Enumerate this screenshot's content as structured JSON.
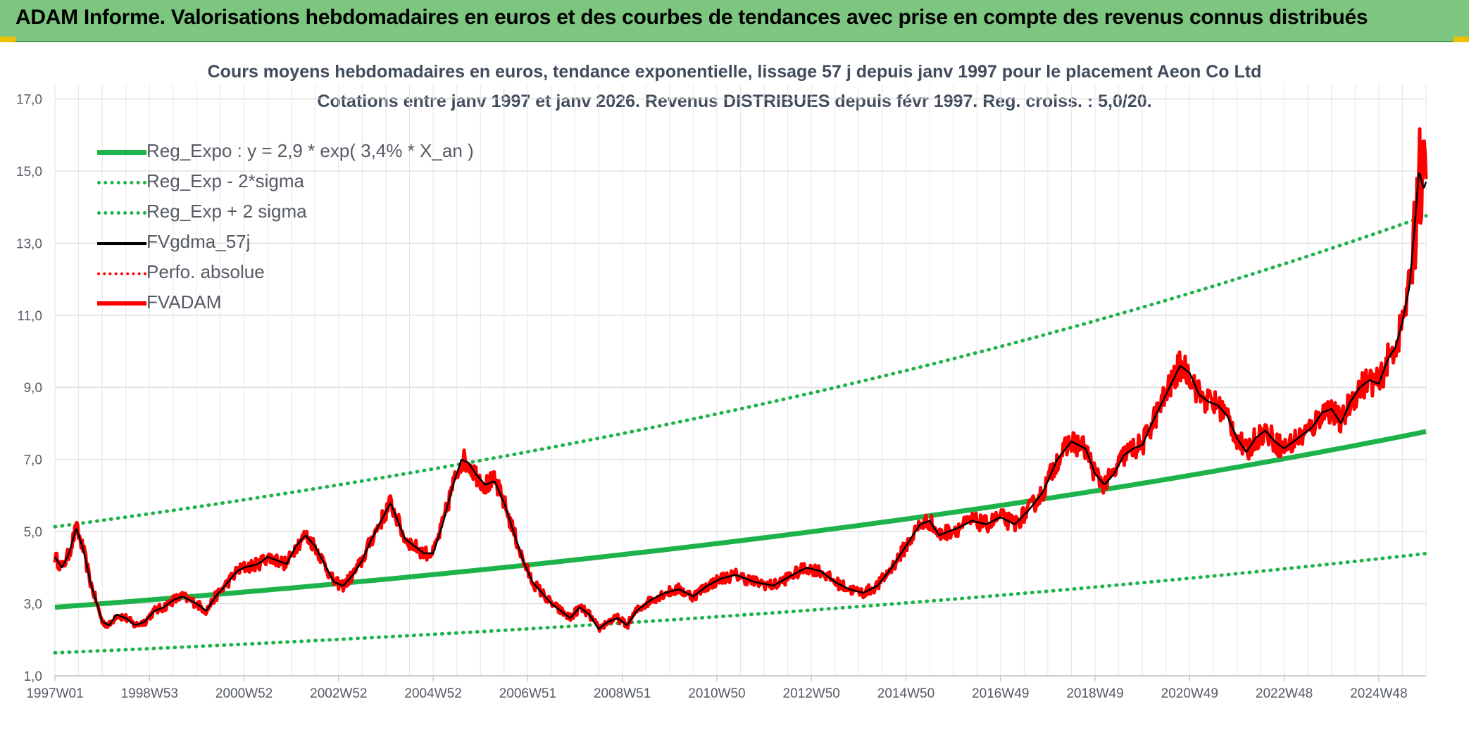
{
  "header": {
    "title": "ADAM Informe. Valorisations hebdomadaires en euros et des courbes de tendances avec prise en compte des revenus connus distribués"
  },
  "chart_data": {
    "type": "line",
    "title": "Cours moyens hebdomadaires en euros, tendance exponentielle, lissage 57 j depuis janv 1997 pour le placement Aeon Co Ltd",
    "subtitle": "Cotations entre janv 1997 et janv 2026. Revenus DISTRIBUES depuis févr 1997. Reg. croiss. : 5,0/20.",
    "xlabel": "",
    "ylabel": "",
    "ylim": [
      1.0,
      17.4
    ],
    "xlim": [
      1997.0,
      2026.0
    ],
    "y_ticks": [
      "1,0",
      "3,0",
      "5,0",
      "7,0",
      "9,0",
      "11,0",
      "13,0",
      "15,0",
      "17,0"
    ],
    "x_ticks": [
      {
        "label": "1997W01",
        "x": 1997.0
      },
      {
        "label": "1998W53",
        "x": 1999.0
      },
      {
        "label": "2000W52",
        "x": 2001.0
      },
      {
        "label": "2002W52",
        "x": 2003.0
      },
      {
        "label": "2004W52",
        "x": 2005.0
      },
      {
        "label": "2006W51",
        "x": 2007.0
      },
      {
        "label": "2008W51",
        "x": 2009.0
      },
      {
        "label": "2010W50",
        "x": 2011.0
      },
      {
        "label": "2012W50",
        "x": 2013.0
      },
      {
        "label": "2014W50",
        "x": 2015.0
      },
      {
        "label": "2016W49",
        "x": 2017.0
      },
      {
        "label": "2018W49",
        "x": 2019.0
      },
      {
        "label": "2020W49",
        "x": 2021.0
      },
      {
        "label": "2022W48",
        "x": 2023.0
      },
      {
        "label": "2024W48",
        "x": 2025.0
      }
    ],
    "regression": {
      "a": 2.9,
      "rate": 0.034,
      "sigma_low_factor": 0.565,
      "sigma_high_factor": 1.77,
      "equation": "y = 2,9 * exp( 3,4% *  X_an )"
    },
    "series": [
      {
        "name": "Reg_Expo : y = 2,9 * exp( 3,4% *  X_an )",
        "style": "solid-thick",
        "color": "#1db34a"
      },
      {
        "name": "Reg_Exp - 2*sigma",
        "style": "dotted",
        "color": "#1db34a"
      },
      {
        "name": "Reg_Exp + 2 sigma",
        "style": "dotted",
        "color": "#1db34a"
      },
      {
        "name": "FVgdma_57j",
        "style": "solid",
        "color": "#000000"
      },
      {
        "name": "Perfo. absolue",
        "style": "dotted",
        "color": "#ff0000"
      },
      {
        "name": "FVADAM",
        "style": "solid-thick",
        "color": "#ff0000"
      }
    ],
    "price_points": {
      "x": [
        1997.0,
        1997.15,
        1997.3,
        1997.45,
        1997.6,
        1997.75,
        1998.0,
        1998.15,
        1998.3,
        1998.5,
        1998.7,
        1998.9,
        1999.1,
        1999.3,
        1999.5,
        1999.7,
        2000.0,
        2000.2,
        2000.4,
        2000.6,
        2000.85,
        2001.0,
        2001.3,
        2001.5,
        2001.7,
        2001.9,
        2002.1,
        2002.3,
        2002.5,
        2002.7,
        2002.9,
        2003.1,
        2003.3,
        2003.5,
        2003.7,
        2003.9,
        2004.1,
        2004.25,
        2004.4,
        2004.6,
        2004.8,
        2005.0,
        2005.2,
        2005.4,
        2005.6,
        2005.75,
        2005.9,
        2006.1,
        2006.3,
        2006.5,
        2006.7,
        2006.9,
        2007.1,
        2007.3,
        2007.5,
        2007.7,
        2007.9,
        2008.1,
        2008.3,
        2008.5,
        2008.7,
        2008.9,
        2009.1,
        2009.3,
        2009.6,
        2009.9,
        2010.2,
        2010.5,
        2010.8,
        2011.1,
        2011.4,
        2011.8,
        2012.2,
        2012.6,
        2012.9,
        2013.2,
        2013.5,
        2013.8,
        2014.1,
        2014.4,
        2014.7,
        2015.0,
        2015.3,
        2015.5,
        2015.7,
        2015.9,
        2016.1,
        2016.4,
        2016.7,
        2017.0,
        2017.3,
        2017.6,
        2017.9,
        2018.2,
        2018.5,
        2018.8,
        2019.0,
        2019.2,
        2019.4,
        2019.6,
        2019.8,
        2020.0,
        2020.2,
        2020.5,
        2020.8,
        2021.0,
        2021.2,
        2021.4,
        2021.6,
        2021.8,
        2022.0,
        2022.2,
        2022.4,
        2022.6,
        2022.8,
        2023.0,
        2023.2,
        2023.4,
        2023.6,
        2023.8,
        2024.0,
        2024.2,
        2024.4,
        2024.6,
        2024.8,
        2025.0,
        2025.2,
        2025.35,
        2025.5,
        2025.65,
        2025.75,
        2025.85,
        2025.95,
        2026.0
      ],
      "y": [
        4.3,
        4.0,
        4.4,
        5.1,
        4.5,
        3.6,
        2.5,
        2.4,
        2.7,
        2.6,
        2.4,
        2.5,
        2.8,
        2.9,
        3.1,
        3.2,
        3.0,
        2.8,
        3.2,
        3.5,
        3.9,
        4.0,
        4.1,
        4.3,
        4.2,
        4.1,
        4.6,
        4.9,
        4.6,
        4.1,
        3.6,
        3.5,
        3.8,
        4.2,
        4.8,
        5.3,
        5.8,
        5.3,
        4.8,
        4.6,
        4.4,
        4.4,
        5.2,
        6.2,
        7.0,
        6.9,
        6.6,
        6.3,
        6.4,
        5.8,
        5.0,
        4.2,
        3.6,
        3.3,
        3.0,
        2.8,
        2.6,
        2.9,
        2.7,
        2.3,
        2.5,
        2.6,
        2.4,
        2.8,
        3.1,
        3.3,
        3.4,
        3.2,
        3.5,
        3.7,
        3.8,
        3.6,
        3.5,
        3.8,
        4.0,
        3.9,
        3.6,
        3.4,
        3.3,
        3.5,
        4.0,
        4.6,
        5.2,
        5.3,
        4.9,
        5.0,
        5.1,
        5.3,
        5.2,
        5.4,
        5.2,
        5.6,
        6.1,
        7.0,
        7.5,
        7.3,
        6.6,
        6.3,
        6.6,
        7.1,
        7.3,
        7.4,
        8.0,
        8.8,
        9.6,
        9.4,
        8.8,
        8.6,
        8.5,
        8.2,
        7.6,
        7.2,
        7.6,
        7.8,
        7.5,
        7.3,
        7.5,
        7.7,
        7.9,
        8.3,
        8.4,
        8.0,
        8.6,
        9.0,
        9.2,
        9.1,
        9.8,
        10.1,
        10.8,
        11.8,
        13.3,
        15.0,
        14.5,
        14.7
      ]
    }
  }
}
